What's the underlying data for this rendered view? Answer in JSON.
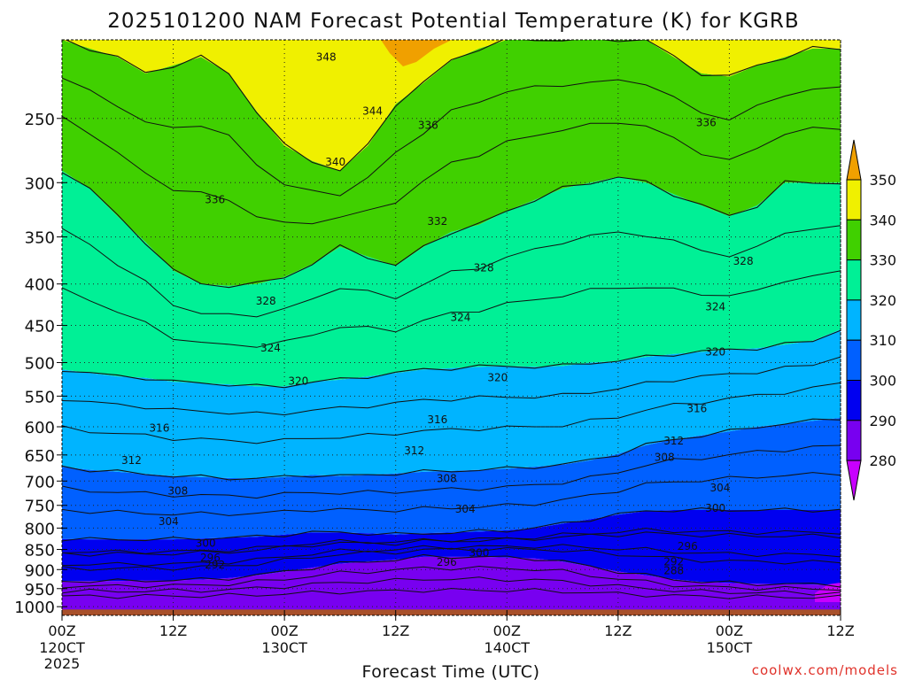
{
  "chart_data": {
    "type": "heatmap",
    "title": "2025101200 NAM Forecast Potential Temperature (K) for KGRB",
    "xlabel": "Forecast Time (UTC)",
    "ylabel": "",
    "credit": "coolwx.com/models",
    "x_range_hours": [
      0,
      84
    ],
    "y_range_hpa": [
      200,
      1025
    ],
    "y_scale": "log",
    "y_ticks": [
      250,
      300,
      350,
      400,
      450,
      500,
      550,
      600,
      650,
      700,
      750,
      800,
      850,
      900,
      950,
      1000
    ],
    "x_ticks": [
      {
        "hour": 0,
        "label": "00Z",
        "sub": "120CT",
        "sub2": "2025"
      },
      {
        "hour": 12,
        "label": "12Z",
        "sub": "",
        "sub2": ""
      },
      {
        "hour": 24,
        "label": "00Z",
        "sub": "130CT",
        "sub2": ""
      },
      {
        "hour": 36,
        "label": "12Z",
        "sub": "",
        "sub2": ""
      },
      {
        "hour": 48,
        "label": "00Z",
        "sub": "140CT",
        "sub2": ""
      },
      {
        "hour": 60,
        "label": "12Z",
        "sub": "",
        "sub2": ""
      },
      {
        "hour": 72,
        "label": "00Z",
        "sub": "150CT",
        "sub2": ""
      },
      {
        "hour": 84,
        "label": "12Z",
        "sub": "",
        "sub2": ""
      }
    ],
    "grid": true,
    "colorbar": {
      "placement": "right",
      "levels": [
        280,
        290,
        300,
        310,
        320,
        330,
        340,
        350
      ],
      "colors": [
        "#c800ff",
        "#7800f0",
        "#0000f0",
        "#0060ff",
        "#00b4ff",
        "#00f096",
        "#40d000",
        "#f0f000",
        "#f0a000"
      ]
    },
    "ground_color": "#a8502a",
    "x_hours": [
      0,
      3,
      6,
      9,
      12,
      15,
      18,
      21,
      24,
      27,
      30,
      33,
      36,
      39,
      42,
      45,
      48,
      51,
      54,
      57,
      60,
      63,
      66,
      69,
      72,
      75,
      78,
      81,
      84
    ],
    "isentropes": [
      {
        "theta": 290,
        "p": [
          930,
          930,
          930,
          928,
          928,
          926,
          922,
          915,
          905,
          895,
          885,
          880,
          875,
          868,
          868,
          868,
          870,
          872,
          880,
          892,
          905,
          915,
          925,
          932,
          935,
          937,
          938,
          939,
          940
        ]
      },
      {
        "theta": 300,
        "p": [
          825,
          826,
          826,
          826,
          826,
          824,
          822,
          820,
          815,
          810,
          810,
          812,
          815,
          812,
          810,
          808,
          805,
          800,
          790,
          780,
          770,
          762,
          760,
          760,
          760,
          760,
          760,
          760,
          760
        ]
      },
      {
        "theta": 310,
        "p": [
          672,
          678,
          682,
          686,
          690,
          692,
          694,
          695,
          692,
          688,
          690,
          688,
          685,
          682,
          680,
          678,
          676,
          672,
          668,
          660,
          648,
          632,
          622,
          615,
          608,
          600,
          595,
          590,
          585
        ]
      },
      {
        "theta": 320,
        "p": [
          510,
          515,
          520,
          522,
          528,
          530,
          532,
          535,
          535,
          528,
          525,
          520,
          515,
          510,
          508,
          506,
          505,
          506,
          505,
          500,
          498,
          492,
          488,
          485,
          482,
          480,
          475,
          470,
          455
        ]
      },
      {
        "theta": 330,
        "p": [
          290,
          305,
          330,
          355,
          385,
          400,
          402,
          400,
          392,
          378,
          360,
          370,
          380,
          360,
          345,
          338,
          325,
          315,
          305,
          300,
          295,
          300,
          310,
          320,
          330,
          320,
          300,
          300,
          300
        ]
      },
      {
        "theta": 340,
        "p": [
          200,
          205,
          210,
          220,
          215,
          210,
          220,
          245,
          270,
          282,
          290,
          270,
          240,
          226,
          212,
          205,
          200,
          200,
          200,
          200,
          200,
          200,
          210,
          220,
          222,
          215,
          210,
          205,
          205
        ]
      }
    ],
    "contour_labels": [
      {
        "hour": 16.5,
        "p": 315,
        "text": "336"
      },
      {
        "hour": 28.5,
        "p": 210,
        "text": "348"
      },
      {
        "hour": 33.5,
        "p": 245,
        "text": "344"
      },
      {
        "hour": 39.5,
        "p": 255,
        "text": "336"
      },
      {
        "hour": 29.5,
        "p": 283,
        "text": "340"
      },
      {
        "hour": 40.5,
        "p": 335,
        "text": "332"
      },
      {
        "hour": 45.5,
        "p": 382,
        "text": "328"
      },
      {
        "hour": 22,
        "p": 420,
        "text": "328"
      },
      {
        "hour": 43,
        "p": 440,
        "text": "324"
      },
      {
        "hour": 22.5,
        "p": 480,
        "text": "324"
      },
      {
        "hour": 25.5,
        "p": 527,
        "text": "320"
      },
      {
        "hour": 47,
        "p": 522,
        "text": "320"
      },
      {
        "hour": 40.5,
        "p": 588,
        "text": "316"
      },
      {
        "hour": 10.5,
        "p": 602,
        "text": "316"
      },
      {
        "hour": 38,
        "p": 642,
        "text": "312"
      },
      {
        "hour": 7.5,
        "p": 660,
        "text": "312"
      },
      {
        "hour": 41.5,
        "p": 695,
        "text": "308"
      },
      {
        "hour": 12.5,
        "p": 720,
        "text": "308"
      },
      {
        "hour": 43.5,
        "p": 758,
        "text": "304"
      },
      {
        "hour": 11.5,
        "p": 785,
        "text": "304"
      },
      {
        "hour": 15.5,
        "p": 835,
        "text": "300"
      },
      {
        "hour": 45,
        "p": 858,
        "text": "300"
      },
      {
        "hour": 16,
        "p": 870,
        "text": "296"
      },
      {
        "hour": 41.5,
        "p": 882,
        "text": "296"
      },
      {
        "hour": 16.5,
        "p": 888,
        "text": "292"
      },
      {
        "hour": 70.5,
        "p": 756,
        "text": "300"
      },
      {
        "hour": 71,
        "p": 714,
        "text": "304"
      },
      {
        "hour": 66,
        "p": 625,
        "text": "312"
      },
      {
        "hour": 65,
        "p": 654,
        "text": "308"
      },
      {
        "hour": 68.5,
        "p": 570,
        "text": "316"
      },
      {
        "hour": 70.5,
        "p": 485,
        "text": "320"
      },
      {
        "hour": 70.5,
        "p": 427,
        "text": "324"
      },
      {
        "hour": 73.5,
        "p": 375,
        "text": "328"
      },
      {
        "hour": 69.5,
        "p": 253,
        "text": "336"
      },
      {
        "hour": 67.5,
        "p": 842,
        "text": "296"
      },
      {
        "hour": 66,
        "p": 880,
        "text": "292"
      },
      {
        "hour": 66,
        "p": 903,
        "text": "288"
      }
    ]
  }
}
